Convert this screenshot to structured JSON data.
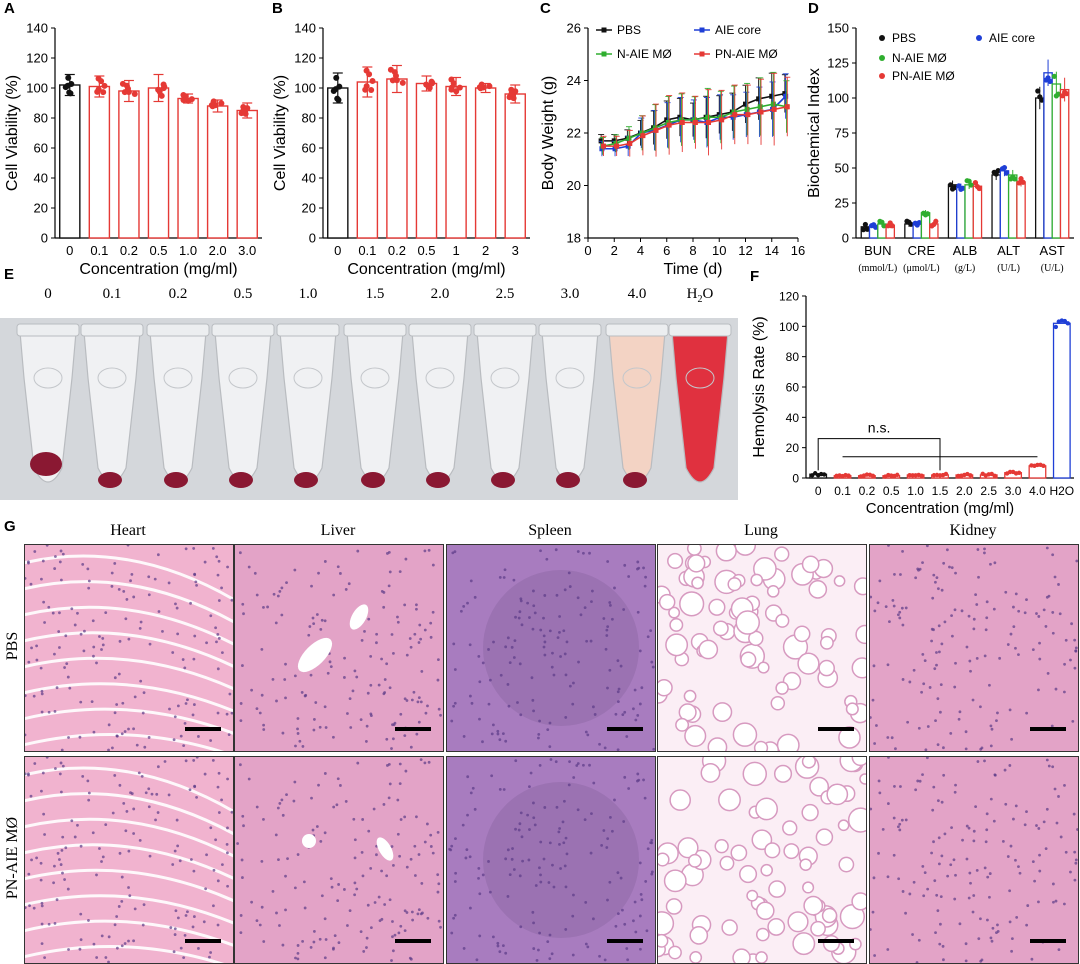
{
  "chart_data": [
    {
      "panel": "A",
      "type": "bar",
      "categories": [
        "0",
        "0.1",
        "0.2",
        "0.5",
        "1.0",
        "2.0",
        "3.0"
      ],
      "values": [
        102,
        101,
        98,
        100,
        93,
        88,
        85
      ],
      "errors": [
        7,
        7,
        7,
        9,
        3,
        4,
        5
      ],
      "xlabel": "Concentration (mg/ml)",
      "ylabel": "Cell Viability (%)",
      "ylim": [
        0,
        140
      ],
      "yticks": [
        "0",
        "20",
        "40",
        "60",
        "80",
        "100",
        "120",
        "140"
      ]
    },
    {
      "panel": "B",
      "type": "bar",
      "categories": [
        "0",
        "0.1",
        "0.2",
        "0.5",
        "1",
        "2",
        "3"
      ],
      "values": [
        100,
        104,
        106,
        103,
        101,
        100,
        96
      ],
      "errors": [
        10,
        10,
        9,
        5,
        6,
        3,
        6
      ],
      "xlabel": "Concentration (mg/ml)",
      "ylabel": "Cell Viability (%)",
      "ylim": [
        0,
        140
      ],
      "yticks": [
        "0",
        "20",
        "40",
        "60",
        "80",
        "100",
        "120",
        "140"
      ]
    },
    {
      "panel": "C",
      "type": "line",
      "x": [
        1,
        2,
        3,
        4,
        5,
        6,
        7,
        8,
        9,
        10,
        11,
        12,
        13,
        14,
        15
      ],
      "series": [
        {
          "name": "PBS",
          "color": "#111111",
          "values": [
            21.7,
            21.7,
            21.8,
            22.0,
            22.2,
            22.5,
            22.6,
            22.5,
            22.6,
            22.7,
            22.8,
            23.1,
            23.3,
            23.4,
            23.5
          ]
        },
        {
          "name": "AIE core",
          "color": "#1f3fd6",
          "values": [
            21.4,
            21.4,
            21.5,
            22.0,
            22.1,
            22.3,
            22.5,
            22.5,
            22.4,
            22.6,
            22.6,
            22.7,
            22.8,
            22.9,
            23.4
          ]
        },
        {
          "name": "N-AIE MØ",
          "color": "#2fae2f",
          "values": [
            21.5,
            21.6,
            21.8,
            22.0,
            22.2,
            22.4,
            22.5,
            22.5,
            22.6,
            22.6,
            22.8,
            22.9,
            23.0,
            23.1,
            23.0
          ]
        },
        {
          "name": "PN-AIE MØ",
          "color": "#e53935",
          "values": [
            21.5,
            21.5,
            21.6,
            21.9,
            22.1,
            22.3,
            22.4,
            22.4,
            22.4,
            22.5,
            22.7,
            22.7,
            22.8,
            22.9,
            23.0
          ]
        }
      ],
      "errors": [
        0.3,
        0.3,
        0.4,
        0.6,
        0.8,
        0.9,
        0.9,
        0.8,
        1.0,
        0.9,
        0.9,
        0.9,
        1.0,
        1.1,
        0.9
      ],
      "xlabel": "Time (d)",
      "ylabel": "Body Weight (g)",
      "xlim": [
        0,
        16
      ],
      "ylim": [
        18,
        26
      ],
      "xticks": [
        "0",
        "2",
        "4",
        "6",
        "8",
        "10",
        "12",
        "14",
        "16"
      ],
      "yticks": [
        "18",
        "20",
        "22",
        "24",
        "26"
      ]
    },
    {
      "panel": "D",
      "type": "bar",
      "categories": [
        "BUN",
        "CRE",
        "ALB",
        "ALT",
        "AST"
      ],
      "units": [
        "(mmol/L)",
        "(μmol/L)",
        "(g/L)",
        "(U/L)",
        "(U/L)"
      ],
      "series": [
        {
          "name": "PBS",
          "color": "#111111",
          "values": [
            8,
            10,
            38,
            45,
            100
          ]
        },
        {
          "name": "AIE core",
          "color": "#1f3fd6",
          "values": [
            9,
            10,
            36,
            48,
            118
          ]
        },
        {
          "name": "N-AIE MØ",
          "color": "#2fae2f",
          "values": [
            10,
            18,
            38,
            45,
            110
          ]
        },
        {
          "name": "PN-AIE MØ",
          "color": "#e53935",
          "values": [
            9,
            10,
            37,
            40,
            106
          ]
        }
      ],
      "ylabel": "Biochemical Index",
      "ylim": [
        0,
        150
      ],
      "yticks": [
        "0",
        "25",
        "50",
        "75",
        "100",
        "125",
        "150"
      ]
    },
    {
      "panel": "F",
      "type": "bar",
      "categories": [
        "0",
        "0.1",
        "0.2",
        "0.5",
        "1.0",
        "1.5",
        "2.0",
        "2.5",
        "3.0",
        "4.0",
        "H2O"
      ],
      "values": [
        2.5,
        1.5,
        1.5,
        1.5,
        2,
        2,
        2,
        2,
        3.5,
        8,
        102
      ],
      "colors": [
        "#111111",
        "#e53935",
        "#e53935",
        "#e53935",
        "#e53935",
        "#e53935",
        "#e53935",
        "#e53935",
        "#e53935",
        "#e53935",
        "#1f3fd6"
      ],
      "annotation": "n.s.",
      "xlabel": "Concentration (mg/ml)",
      "ylabel": "Hemolysis Rate (%)",
      "ylim": [
        0,
        120
      ],
      "yticks": [
        "0",
        "20",
        "40",
        "60",
        "80",
        "100",
        "120"
      ]
    }
  ],
  "panel_labels": {
    "A": "A",
    "B": "B",
    "C": "C",
    "D": "D",
    "E": "E",
    "F": "F",
    "G": "G"
  },
  "panel_e": {
    "tube_labels": [
      "0",
      "0.1",
      "0.2",
      "0.5",
      "1.0",
      "1.5",
      "2.0",
      "2.5",
      "3.0",
      "4.0"
    ],
    "water_label_main": "H",
    "water_label_sub": "2",
    "water_label_end": "O"
  },
  "panel_g": {
    "columns": [
      "Heart",
      "Liver",
      "Spleen",
      "Lung",
      "Kidney"
    ],
    "rows": [
      "PBS",
      "PN-AIE MØ"
    ],
    "colors": {
      "tissue": "#e3a3c7",
      "dense": "#a87cbf",
      "bg_light": "#fbeef5",
      "heart": "#f1b3cf"
    }
  }
}
